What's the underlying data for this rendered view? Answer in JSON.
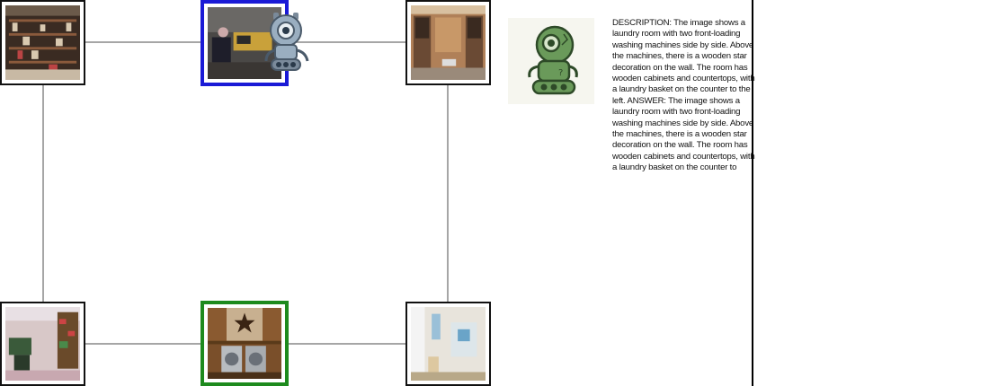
{
  "description": "DESCRIPTION: The image shows a laundry room with two front-loading washing machines side by side. Above the machines, there is a wooden star decoration on the wall. The room has wooden cabinets and countertops, with a laundry basket on the counter to the left.  ANSWER: The image shows a laundry room with two front-loading washing machines side by side. Above the machines, there is a wooden star decoration on the wall. The room has wooden cabinets and countertops, with a laundry basket on the counter to",
  "colors": {
    "current_border": "#1a1ad6",
    "target_border": "#1d8a1d",
    "edge": "#888888",
    "robot_panel": "#f6f6ef",
    "robot_green": "#6a9a5a",
    "robot_gray": "#9aaec0"
  },
  "nodes": [
    {
      "id": "top-left",
      "scene": "wooden shelves store room",
      "state": "default"
    },
    {
      "id": "top-middle",
      "scene": "control desk room",
      "state": "current"
    },
    {
      "id": "top-right",
      "scene": "walk-in closet",
      "state": "default"
    },
    {
      "id": "bottom-left",
      "scene": "bedroom with shelves",
      "state": "default"
    },
    {
      "id": "bottom-middle",
      "scene": "laundry room with star",
      "state": "target"
    },
    {
      "id": "bottom-right",
      "scene": "bathroom",
      "state": "default"
    }
  ],
  "icons": {
    "agent": "robot-icon",
    "panel": "robot-thinking-icon"
  }
}
